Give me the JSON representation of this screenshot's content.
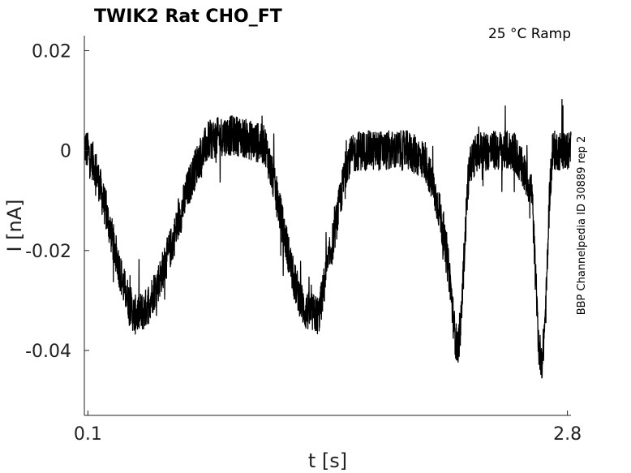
{
  "chart_data": {
    "type": "line",
    "title": "TWIK2  Rat  CHO_FT",
    "annotation": "25 °C  Ramp",
    "side_label": "BBP Channelpedia ID 30889 rep 2",
    "xlabel": "t [s]",
    "ylabel": "I [nA]",
    "xlim": [
      0.08,
      2.82
    ],
    "ylim": [
      -0.053,
      0.023
    ],
    "xticks": [
      0.1,
      2.8
    ],
    "xtick_labels": [
      "0.1",
      "2.8"
    ],
    "yticks": [
      0.02,
      0,
      -0.02,
      -0.04
    ],
    "ytick_labels": [
      "0.02",
      "0",
      "-0.02",
      "-0.04"
    ],
    "line_color": "#000000",
    "noise_amplitude": 0.004,
    "series": [
      {
        "x": [
          0.08,
          0.14,
          0.22,
          0.3,
          0.36,
          0.42,
          0.5,
          0.58,
          0.66,
          0.72,
          0.78,
          0.86,
          0.94,
          1.02,
          1.1,
          1.18,
          1.26,
          1.32,
          1.4,
          1.44,
          1.48,
          1.52,
          1.56,
          1.62,
          1.68,
          1.74,
          1.8,
          1.9,
          2.0,
          2.08,
          2.14,
          2.16,
          2.18,
          2.2,
          2.22,
          2.24,
          2.26,
          2.3,
          2.36,
          2.42,
          2.5,
          2.6,
          2.62,
          2.64,
          2.66,
          2.68,
          2.7,
          2.72,
          2.76,
          2.82
        ],
        "y": [
          0.001,
          -0.003,
          -0.015,
          -0.027,
          -0.033,
          -0.032,
          -0.026,
          -0.018,
          -0.008,
          -0.002,
          0.002,
          0.003,
          0.003,
          0.002,
          0.001,
          -0.012,
          -0.026,
          -0.032,
          -0.033,
          -0.025,
          -0.018,
          -0.01,
          -0.002,
          0.0,
          0.0,
          0.0,
          0.0,
          0.0,
          -0.002,
          -0.012,
          -0.026,
          -0.035,
          -0.04,
          -0.035,
          -0.02,
          -0.006,
          -0.002,
          0.0,
          0.0,
          0.0,
          0.0,
          -0.008,
          -0.025,
          -0.04,
          -0.042,
          -0.03,
          -0.008,
          0.0,
          0.0,
          0.0
        ]
      }
    ]
  }
}
